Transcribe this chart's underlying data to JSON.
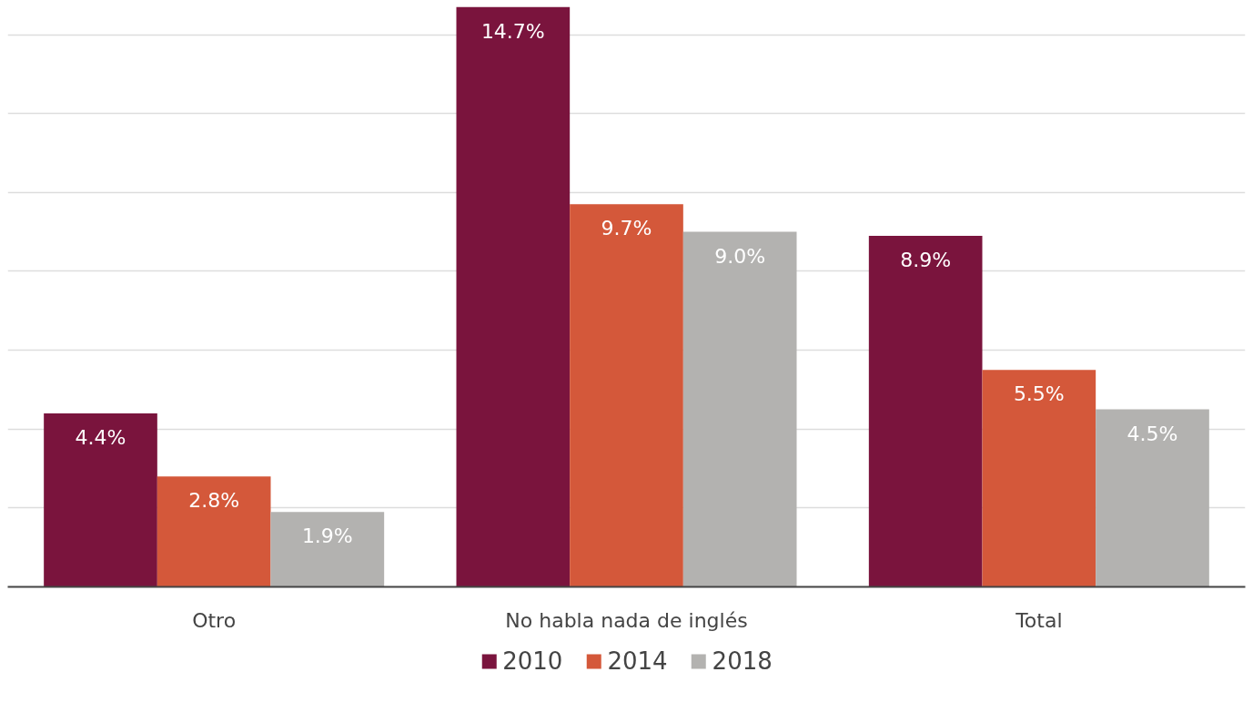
{
  "chart_data": {
    "type": "bar",
    "categories": [
      "Otro",
      "No habla nada de inglés",
      "Total"
    ],
    "series": [
      {
        "name": "2010",
        "color": "#7a143d",
        "values": [
          4.4,
          14.7,
          8.9
        ],
        "value_labels": [
          "4.4%",
          "14.7%",
          "8.9%"
        ]
      },
      {
        "name": "2014",
        "color": "#d4583a",
        "values": [
          2.8,
          9.7,
          5.5
        ],
        "value_labels": [
          "2.8%",
          "9.7%",
          "5.5%"
        ]
      },
      {
        "name": "2018",
        "color": "#b3b2b0",
        "values": [
          1.9,
          9.0,
          4.5
        ],
        "value_labels": [
          "1.9%",
          "9.0%",
          "4.5%"
        ]
      }
    ],
    "tick_labels": "x",
    "grid": "y",
    "legend": "bottom"
  }
}
